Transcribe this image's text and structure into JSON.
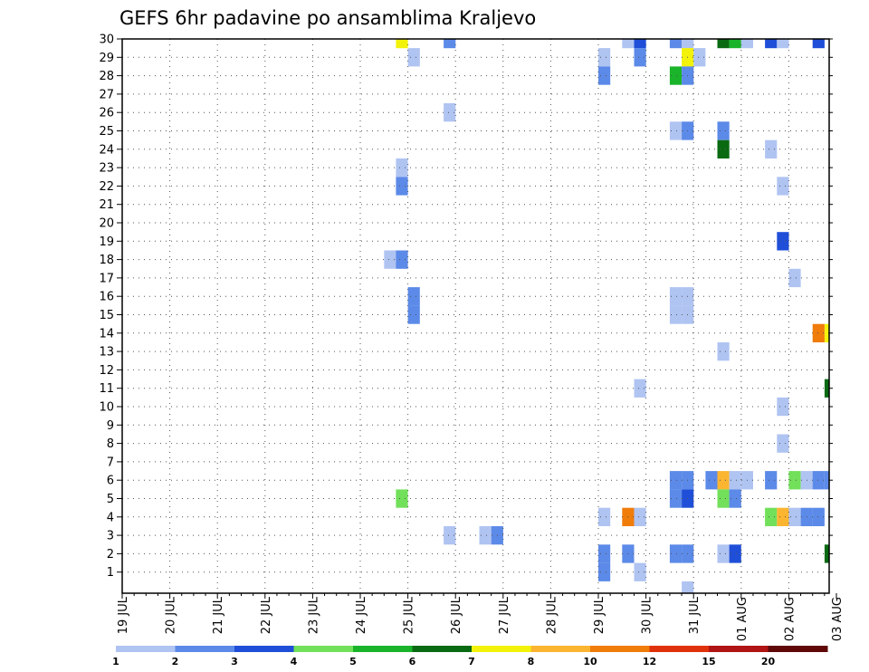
{
  "chart_data": {
    "type": "heatmap",
    "title": "GEFS 6hr padavine po ansamblima Kraljevo",
    "xlabel": "",
    "ylabel": "",
    "x_ticks": [
      "19 JUL",
      "20 JUL",
      "21 JUL",
      "22 JUL",
      "23 JUL",
      "24 JUL",
      "25 JUL",
      "26 JUL",
      "27 JUL",
      "28 JUL",
      "29 JUL",
      "30 JUL",
      "31 JUL",
      "01 AUG",
      "02 AUG",
      "03 AUG"
    ],
    "y_ticks": [
      1,
      2,
      3,
      4,
      5,
      6,
      7,
      8,
      9,
      10,
      11,
      12,
      13,
      14,
      15,
      16,
      17,
      18,
      19,
      20,
      21,
      22,
      23,
      24,
      25,
      26,
      27,
      28,
      29,
      30
    ],
    "x_unit": "6-hour step from 19 JUL 00Z",
    "grid": true,
    "legend": {
      "position": "bottom",
      "labels": [
        "1",
        "2",
        "3",
        "4",
        "5",
        "6",
        "7",
        "8",
        "10",
        "12",
        "15",
        "20"
      ],
      "colors": [
        "#b0c4f2",
        "#5c8ae8",
        "#1f4fd8",
        "#72e05a",
        "#1ab42a",
        "#0a6a12",
        "#f2f20a",
        "#fbb531",
        "#f07c0a",
        "#e0320a",
        "#b01414",
        "#600808"
      ]
    },
    "cells": [
      {
        "member": 30,
        "x": 23,
        "level": 7
      },
      {
        "member": 30,
        "x": 27,
        "level": 2
      },
      {
        "member": 30,
        "x": 42,
        "level": 1
      },
      {
        "member": 30,
        "x": 43,
        "level": 3
      },
      {
        "member": 30,
        "x": 46,
        "level": 2
      },
      {
        "member": 30,
        "x": 47,
        "level": 1
      },
      {
        "member": 30,
        "x": 50,
        "level": 6
      },
      {
        "member": 30,
        "x": 51,
        "level": 5
      },
      {
        "member": 30,
        "x": 52,
        "level": 1
      },
      {
        "member": 30,
        "x": 54,
        "level": 3
      },
      {
        "member": 30,
        "x": 55,
        "level": 1
      },
      {
        "member": 30,
        "x": 58,
        "level": 3
      },
      {
        "member": 29,
        "x": 24,
        "level": 1
      },
      {
        "member": 29,
        "x": 40,
        "level": 1
      },
      {
        "member": 29,
        "x": 43,
        "level": 2
      },
      {
        "member": 29,
        "x": 47,
        "level": 7
      },
      {
        "member": 29,
        "x": 48,
        "level": 1
      },
      {
        "member": 28,
        "x": 40,
        "level": 2
      },
      {
        "member": 28,
        "x": 46,
        "level": 5
      },
      {
        "member": 28,
        "x": 47,
        "level": 2
      },
      {
        "member": 26,
        "x": 27,
        "level": 1
      },
      {
        "member": 25,
        "x": 46,
        "level": 1
      },
      {
        "member": 25,
        "x": 47,
        "level": 2
      },
      {
        "member": 25,
        "x": 50,
        "level": 2
      },
      {
        "member": 24,
        "x": 50,
        "level": 6
      },
      {
        "member": 24,
        "x": 54,
        "level": 1
      },
      {
        "member": 23,
        "x": 23,
        "level": 1
      },
      {
        "member": 22,
        "x": 23,
        "level": 2
      },
      {
        "member": 22,
        "x": 55,
        "level": 1
      },
      {
        "member": 19,
        "x": 55,
        "level": 3
      },
      {
        "member": 18,
        "x": 22,
        "level": 1
      },
      {
        "member": 18,
        "x": 23,
        "level": 2
      },
      {
        "member": 17,
        "x": 56,
        "level": 1
      },
      {
        "member": 16,
        "x": 24,
        "level": 2
      },
      {
        "member": 16,
        "x": 46,
        "level": 1
      },
      {
        "member": 16,
        "x": 47,
        "level": 1
      },
      {
        "member": 15,
        "x": 24,
        "level": 2
      },
      {
        "member": 15,
        "x": 46,
        "level": 1
      },
      {
        "member": 15,
        "x": 47,
        "level": 1
      },
      {
        "member": 14,
        "x": 58,
        "level": 9
      },
      {
        "member": 14,
        "x": 59,
        "level": 7
      },
      {
        "member": 13,
        "x": 50,
        "level": 1
      },
      {
        "member": 11,
        "x": 43,
        "level": 1
      },
      {
        "member": 11,
        "x": 59,
        "level": 6
      },
      {
        "member": 10,
        "x": 55,
        "level": 1
      },
      {
        "member": 8,
        "x": 55,
        "level": 1
      },
      {
        "member": 6,
        "x": 46,
        "level": 2
      },
      {
        "member": 6,
        "x": 47,
        "level": 2
      },
      {
        "member": 6,
        "x": 49,
        "level": 2
      },
      {
        "member": 6,
        "x": 50,
        "level": 8
      },
      {
        "member": 6,
        "x": 51,
        "level": 1
      },
      {
        "member": 6,
        "x": 52,
        "level": 1
      },
      {
        "member": 6,
        "x": 54,
        "level": 2
      },
      {
        "member": 6,
        "x": 56,
        "level": 4
      },
      {
        "member": 6,
        "x": 57,
        "level": 1
      },
      {
        "member": 6,
        "x": 58,
        "level": 2
      },
      {
        "member": 6,
        "x": 59,
        "level": 2
      },
      {
        "member": 5,
        "x": 23,
        "level": 4
      },
      {
        "member": 5,
        "x": 46,
        "level": 2
      },
      {
        "member": 5,
        "x": 47,
        "level": 3
      },
      {
        "member": 5,
        "x": 50,
        "level": 4
      },
      {
        "member": 5,
        "x": 51,
        "level": 2
      },
      {
        "member": 4,
        "x": 40,
        "level": 1
      },
      {
        "member": 4,
        "x": 42,
        "level": 9
      },
      {
        "member": 4,
        "x": 43,
        "level": 1
      },
      {
        "member": 4,
        "x": 54,
        "level": 4
      },
      {
        "member": 4,
        "x": 55,
        "level": 8
      },
      {
        "member": 4,
        "x": 56,
        "level": 1
      },
      {
        "member": 4,
        "x": 57,
        "level": 2
      },
      {
        "member": 4,
        "x": 58,
        "level": 2
      },
      {
        "member": 3,
        "x": 27,
        "level": 1
      },
      {
        "member": 3,
        "x": 30,
        "level": 1
      },
      {
        "member": 3,
        "x": 31,
        "level": 2
      },
      {
        "member": 2,
        "x": 40,
        "level": 2
      },
      {
        "member": 2,
        "x": 42,
        "level": 2
      },
      {
        "member": 2,
        "x": 46,
        "level": 2
      },
      {
        "member": 2,
        "x": 47,
        "level": 2
      },
      {
        "member": 2,
        "x": 50,
        "level": 1
      },
      {
        "member": 2,
        "x": 51,
        "level": 3
      },
      {
        "member": 2,
        "x": 59,
        "level": 6
      },
      {
        "member": 1,
        "x": 40,
        "level": 2
      },
      {
        "member": 1,
        "x": 43,
        "level": 1
      },
      {
        "member": 0,
        "x": 47,
        "level": 1
      }
    ]
  }
}
